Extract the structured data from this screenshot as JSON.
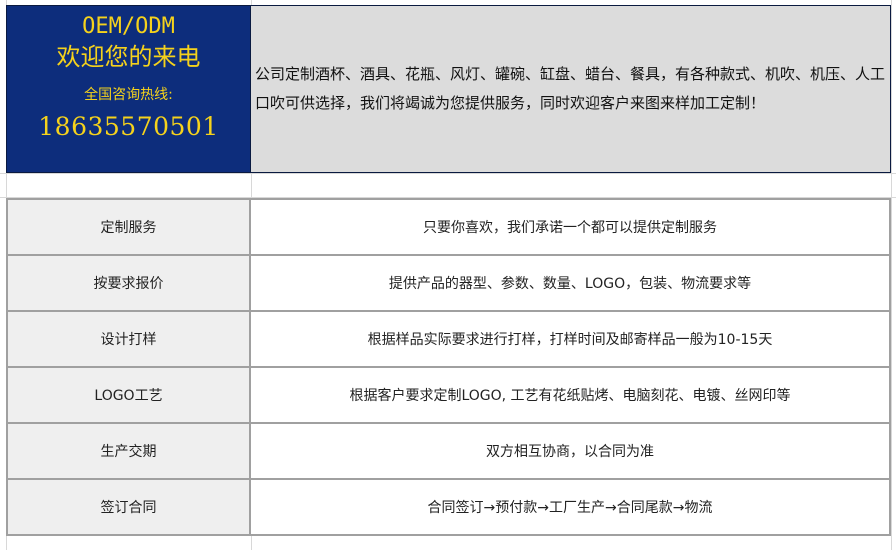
{
  "hero": {
    "title": "OEM/ODM",
    "subtitle": "欢迎您的来电",
    "hotline_label": "全国咨询热线:",
    "phone": "18635570501",
    "description": "公司定制酒杯、酒具、花瓶、风灯、罐碗、缸盘、蜡台、餐具，有各种款式、机吹、机压、人工口吹可供选择，我们将竭诚为您提供服务，同时欢迎客户来图来样加工定制！",
    "colors": {
      "background": "#0d2d7c",
      "text": "#f5d21c",
      "description_bg": "#dcdcdc"
    }
  },
  "rows": [
    {
      "label": "定制服务",
      "value": "只要你喜欢，我们承诺一个都可以提供定制服务"
    },
    {
      "label": "按要求报价",
      "value": "提供产品的器型、参数、数量、LOGO，包装、物流要求等"
    },
    {
      "label": "设计打样",
      "value": "根据样品实际要求进行打样，打样时间及邮寄样品一般为10-15天"
    },
    {
      "label": "LOGO工艺",
      "value": "根据客户要求定制LOGO, 工艺有花纸贴烤、电脑刻花、电镀、丝网印等"
    },
    {
      "label": "生产交期",
      "value": "双方相互协商，以合同为准"
    },
    {
      "label": "签订合同",
      "value": "合同签订→预付款→工厂生产→合同尾款→物流"
    }
  ]
}
